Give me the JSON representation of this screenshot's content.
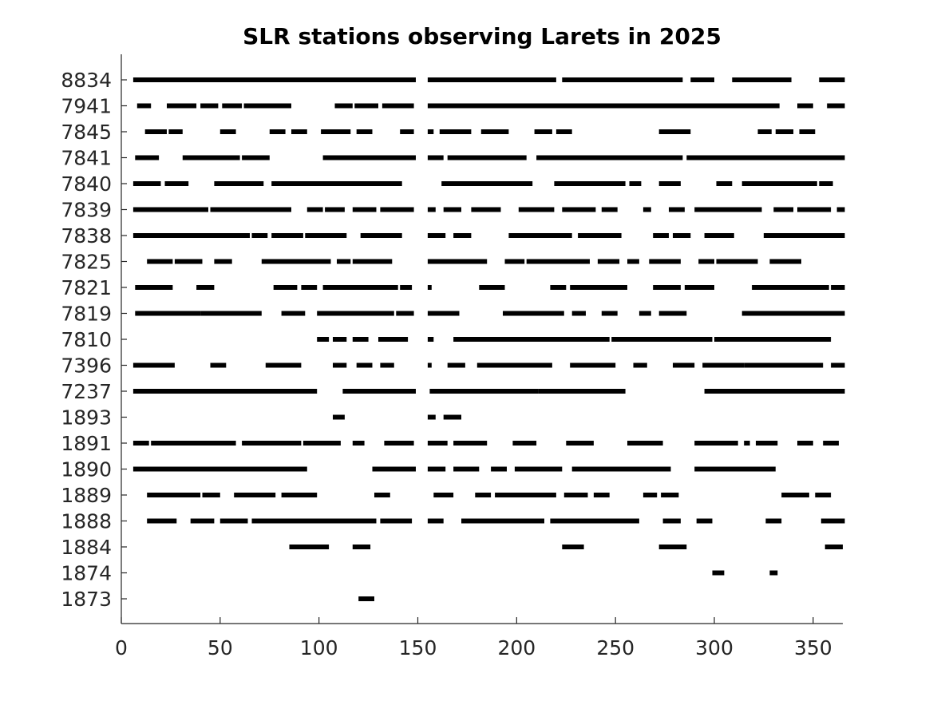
{
  "chart_data": {
    "type": "timeline",
    "title": "SLR stations observing Larets in 2025",
    "xlabel": "",
    "ylabel": "",
    "xlim": [
      0,
      365
    ],
    "xticks": [
      0,
      50,
      100,
      150,
      200,
      250,
      300,
      350
    ],
    "grid": false,
    "series_color": "#000000",
    "stations": [
      {
        "id": "8834",
        "segments": [
          [
            6,
            149
          ],
          [
            155,
            220
          ],
          [
            223,
            284
          ],
          [
            288,
            300
          ],
          [
            309,
            339
          ],
          [
            353,
            366
          ]
        ]
      },
      {
        "id": "7941",
        "segments": [
          [
            8,
            15
          ],
          [
            23,
            38
          ],
          [
            40,
            49
          ],
          [
            51,
            61
          ],
          [
            62,
            86
          ],
          [
            108,
            117
          ],
          [
            118,
            130
          ],
          [
            132,
            148
          ],
          [
            155,
            333
          ],
          [
            342,
            350
          ],
          [
            357,
            366
          ]
        ]
      },
      {
        "id": "7845",
        "segments": [
          [
            12,
            23
          ],
          [
            24,
            31
          ],
          [
            50,
            58
          ],
          [
            75,
            83
          ],
          [
            86,
            94
          ],
          [
            101,
            116
          ],
          [
            119,
            127
          ],
          [
            141,
            148
          ],
          [
            155,
            158
          ],
          [
            161,
            177
          ],
          [
            182,
            196
          ],
          [
            209,
            218
          ],
          [
            220,
            228
          ],
          [
            272,
            288
          ],
          [
            322,
            329
          ],
          [
            331,
            340
          ],
          [
            343,
            351
          ]
        ]
      },
      {
        "id": "7841",
        "segments": [
          [
            7,
            19
          ],
          [
            31,
            60
          ],
          [
            61,
            75
          ],
          [
            102,
            149
          ],
          [
            155,
            163
          ],
          [
            165,
            205
          ],
          [
            210,
            284
          ],
          [
            286,
            366
          ]
        ]
      },
      {
        "id": "7840",
        "segments": [
          [
            6,
            20
          ],
          [
            22,
            34
          ],
          [
            47,
            72
          ],
          [
            76,
            142
          ],
          [
            162,
            208
          ],
          [
            219,
            255
          ],
          [
            257,
            263
          ],
          [
            272,
            283
          ],
          [
            301,
            309
          ],
          [
            314,
            352
          ],
          [
            353,
            360
          ]
        ]
      },
      {
        "id": "7839",
        "segments": [
          [
            6,
            22
          ],
          [
            22,
            44
          ],
          [
            45,
            86
          ],
          [
            94,
            102
          ],
          [
            103,
            113
          ],
          [
            117,
            129
          ],
          [
            131,
            145
          ],
          [
            137,
            148
          ],
          [
            155,
            159
          ],
          [
            163,
            172
          ],
          [
            177,
            192
          ],
          [
            201,
            219
          ],
          [
            223,
            240
          ],
          [
            243,
            251
          ],
          [
            264,
            268
          ],
          [
            277,
            285
          ],
          [
            290,
            324
          ],
          [
            330,
            340
          ],
          [
            342,
            359
          ],
          [
            362,
            366
          ]
        ]
      },
      {
        "id": "7838",
        "segments": [
          [
            6,
            65
          ],
          [
            66,
            74
          ],
          [
            76,
            92
          ],
          [
            93,
            114
          ],
          [
            121,
            142
          ],
          [
            155,
            164
          ],
          [
            168,
            177
          ],
          [
            196,
            228
          ],
          [
            231,
            253
          ],
          [
            269,
            277
          ],
          [
            279,
            288
          ],
          [
            295,
            310
          ],
          [
            325,
            366
          ]
        ]
      },
      {
        "id": "7825",
        "segments": [
          [
            13,
            26
          ],
          [
            27,
            41
          ],
          [
            47,
            56
          ],
          [
            71,
            106
          ],
          [
            109,
            116
          ],
          [
            117,
            137
          ],
          [
            155,
            185
          ],
          [
            194,
            204
          ],
          [
            205,
            237
          ],
          [
            241,
            252
          ],
          [
            256,
            262
          ],
          [
            267,
            283
          ],
          [
            292,
            300
          ],
          [
            301,
            322
          ],
          [
            328,
            344
          ]
        ]
      },
      {
        "id": "7821",
        "segments": [
          [
            7,
            26
          ],
          [
            38,
            47
          ],
          [
            77,
            89
          ],
          [
            91,
            99
          ],
          [
            102,
            140
          ],
          [
            141,
            147
          ],
          [
            155,
            157
          ],
          [
            181,
            194
          ],
          [
            217,
            225
          ],
          [
            227,
            256
          ],
          [
            269,
            283
          ],
          [
            285,
            300
          ],
          [
            319,
            358
          ],
          [
            359,
            366
          ]
        ]
      },
      {
        "id": "7819",
        "segments": [
          [
            7,
            40
          ],
          [
            40,
            71
          ],
          [
            81,
            93
          ],
          [
            99,
            138
          ],
          [
            139,
            148
          ],
          [
            155,
            171
          ],
          [
            193,
            224
          ],
          [
            228,
            235
          ],
          [
            243,
            251
          ],
          [
            262,
            268
          ],
          [
            272,
            286
          ],
          [
            314,
            366
          ]
        ]
      },
      {
        "id": "7810",
        "segments": [
          [
            99,
            105
          ],
          [
            107,
            114
          ],
          [
            117,
            125
          ],
          [
            130,
            145
          ],
          [
            155,
            158
          ],
          [
            168,
            247
          ],
          [
            248,
            299
          ],
          [
            300,
            359
          ]
        ]
      },
      {
        "id": "7396",
        "segments": [
          [
            6,
            27
          ],
          [
            45,
            53
          ],
          [
            73,
            91
          ],
          [
            107,
            114
          ],
          [
            119,
            127
          ],
          [
            131,
            138
          ],
          [
            155,
            157
          ],
          [
            165,
            174
          ],
          [
            180,
            218
          ],
          [
            227,
            250
          ],
          [
            259,
            266
          ],
          [
            279,
            290
          ],
          [
            294,
            315
          ],
          [
            315,
            355
          ],
          [
            359,
            366
          ]
        ]
      },
      {
        "id": "7237",
        "segments": [
          [
            6,
            99
          ],
          [
            112,
            149
          ],
          [
            156,
            211
          ],
          [
            211,
            255
          ],
          [
            295,
            366
          ]
        ]
      },
      {
        "id": "1893",
        "segments": [
          [
            107,
            113
          ],
          [
            155,
            159
          ],
          [
            163,
            172
          ]
        ]
      },
      {
        "id": "1891",
        "segments": [
          [
            6,
            14
          ],
          [
            15,
            58
          ],
          [
            61,
            91
          ],
          [
            92,
            111
          ],
          [
            117,
            123
          ],
          [
            133,
            148
          ],
          [
            155,
            165
          ],
          [
            168,
            185
          ],
          [
            198,
            210
          ],
          [
            225,
            239
          ],
          [
            256,
            274
          ],
          [
            290,
            312
          ],
          [
            315,
            318
          ],
          [
            321,
            332
          ],
          [
            342,
            350
          ],
          [
            355,
            363
          ]
        ]
      },
      {
        "id": "1890",
        "segments": [
          [
            6,
            94
          ],
          [
            127,
            149
          ],
          [
            155,
            164
          ],
          [
            168,
            181
          ],
          [
            187,
            195
          ],
          [
            199,
            223
          ],
          [
            228,
            278
          ],
          [
            290,
            331
          ]
        ]
      },
      {
        "id": "1889",
        "segments": [
          [
            13,
            40
          ],
          [
            41,
            50
          ],
          [
            57,
            78
          ],
          [
            81,
            99
          ],
          [
            128,
            136
          ],
          [
            158,
            168
          ],
          [
            179,
            187
          ],
          [
            189,
            220
          ],
          [
            224,
            236
          ],
          [
            239,
            247
          ],
          [
            264,
            271
          ],
          [
            273,
            282
          ],
          [
            334,
            348
          ],
          [
            351,
            359
          ]
        ]
      },
      {
        "id": "1888",
        "segments": [
          [
            13,
            28
          ],
          [
            35,
            47
          ],
          [
            50,
            64
          ],
          [
            66,
            129
          ],
          [
            131,
            147
          ],
          [
            155,
            163
          ],
          [
            172,
            214
          ],
          [
            217,
            262
          ],
          [
            274,
            283
          ],
          [
            291,
            299
          ],
          [
            326,
            334
          ],
          [
            354,
            366
          ]
        ]
      },
      {
        "id": "1884",
        "segments": [
          [
            85,
            105
          ],
          [
            117,
            126
          ],
          [
            223,
            234
          ],
          [
            272,
            286
          ],
          [
            356,
            365
          ]
        ]
      },
      {
        "id": "1874",
        "segments": [
          [
            299,
            305
          ],
          [
            328,
            332
          ]
        ]
      },
      {
        "id": "1873",
        "segments": [
          [
            120,
            128
          ]
        ]
      }
    ]
  }
}
